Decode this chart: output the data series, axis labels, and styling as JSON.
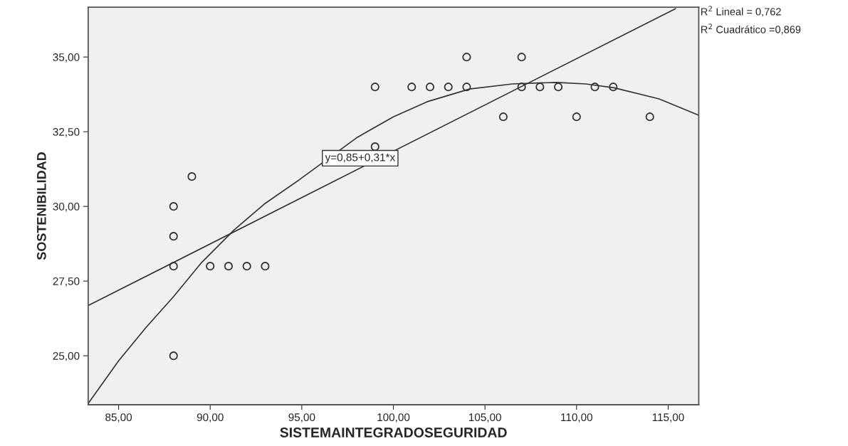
{
  "chart_data": {
    "type": "scatter",
    "xlabel": "SISTEMAINTEGRADOSEGURIDAD",
    "ylabel": "SOSTENIBILIDAD",
    "xlim": [
      83.34,
      116.67
    ],
    "ylim": [
      23.36,
      36.67
    ],
    "xticks": [
      {
        "value": 85,
        "label": "85,00"
      },
      {
        "value": 90,
        "label": "90,00"
      },
      {
        "value": 95,
        "label": "95,00"
      },
      {
        "value": 100,
        "label": "100,00"
      },
      {
        "value": 105,
        "label": "105,00"
      },
      {
        "value": 110,
        "label": "110,00"
      },
      {
        "value": 115,
        "label": "115,00"
      }
    ],
    "yticks": [
      {
        "value": 25,
        "label": "25,00"
      },
      {
        "value": 27.5,
        "label": "27,50"
      },
      {
        "value": 30,
        "label": "30,00"
      },
      {
        "value": 32.5,
        "label": "32,50"
      },
      {
        "value": 35,
        "label": "35,00"
      }
    ],
    "grid": false,
    "marker": "circle",
    "series": [
      {
        "color": "#333333",
        "x": [
          104,
          107,
          99,
          101,
          102,
          103,
          104,
          107,
          108,
          109,
          111,
          112,
          106,
          110,
          114,
          99,
          89,
          88,
          88,
          88,
          90,
          91,
          92,
          93,
          88
        ],
        "values": [
          35,
          35,
          34,
          34,
          34,
          34,
          34,
          34,
          34,
          34,
          34,
          34,
          33,
          33,
          33,
          32,
          31,
          30,
          29,
          28,
          28,
          28,
          28,
          28,
          25
        ]
      },
      {
        "type": "line",
        "color": "#333333",
        "marker": "none",
        "x": [
          83.34,
          115.4
        ],
        "values": [
          26.68,
          36.62
        ]
      },
      {
        "type": "line",
        "color": "#333333",
        "marker": "none",
        "x": [
          83.34,
          85,
          86.5,
          88,
          89.5,
          91.3,
          93,
          94.84,
          98,
          100,
          101.83,
          104.16,
          106.5,
          108.9,
          110.5,
          112.04,
          114.5,
          116.67
        ],
        "values": [
          23.4,
          24.83,
          25.95,
          26.98,
          28.1,
          29.21,
          30.1,
          30.88,
          32.3,
          33,
          33.5,
          33.93,
          34.1,
          34.15,
          34.1,
          33.97,
          33.6,
          33.05
        ]
      }
    ],
    "annotations": [
      "y=0,85+0,31*x",
      "R$^{2}$ Lineal = 0,762",
      "R$^{2}$ Cuadrático =0,869"
    ]
  }
}
